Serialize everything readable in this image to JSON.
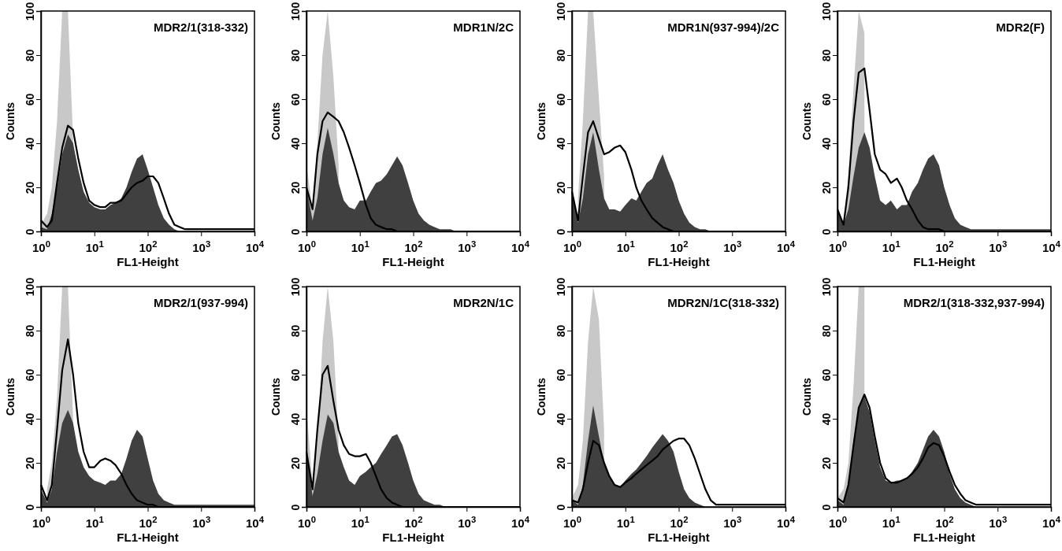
{
  "chart_data": [
    {
      "type": "area",
      "title": "MDR2/1(318-332)",
      "xlabel": "FL1-Height",
      "ylabel": "Counts",
      "log": "x",
      "xlim": [
        1,
        10000
      ],
      "ylim": [
        0,
        100
      ],
      "xticks": [
        {
          "value": 1,
          "label": "10$^{0}$"
        },
        {
          "value": 10,
          "label": "10$^{1}$"
        },
        {
          "value": 100,
          "label": "10$^{2}$"
        },
        {
          "value": 1000,
          "label": "10$^{3}$"
        },
        {
          "value": 10000,
          "label": "10$^{4}$"
        }
      ],
      "yticks": [
        0,
        20,
        40,
        60,
        80,
        100
      ],
      "x": [
        1,
        1.3,
        1.6,
        2,
        2.5,
        3.2,
        4,
        5,
        6.3,
        8,
        10,
        13,
        16,
        20,
        25,
        32,
        40,
        50,
        63,
        80,
        100,
        126,
        158,
        200,
        251,
        316,
        398,
        500,
        631,
        794,
        1000,
        2000,
        5000,
        10000
      ],
      "series": [
        {
          "color": "#c8c8c8",
          "values": [
            3,
            8,
            20,
            50,
            100,
            100,
            42,
            null,
            null,
            null,
            null,
            null,
            null,
            null,
            null,
            null,
            null,
            null,
            null,
            null,
            null,
            null,
            null,
            null,
            null,
            null,
            null,
            null,
            null,
            null,
            null,
            null,
            null,
            null
          ]
        },
        {
          "color": "#404040",
          "values": [
            2,
            1,
            8,
            20,
            35,
            44,
            40,
            28,
            18,
            13,
            11,
            10,
            10,
            12,
            13,
            15,
            20,
            27,
            33,
            35,
            28,
            20,
            12,
            6,
            3,
            1,
            0,
            0,
            0,
            0,
            0,
            0,
            0,
            0
          ]
        },
        {
          "type": "line",
          "color": "#000000",
          "values": [
            5,
            2,
            5,
            22,
            38,
            48,
            46,
            33,
            22,
            14,
            12,
            11,
            11,
            13,
            13,
            14,
            17,
            20,
            22,
            23,
            25,
            25,
            22,
            15,
            8,
            3,
            2,
            1,
            1,
            1,
            1,
            1,
            1,
            1
          ]
        }
      ]
    },
    {
      "type": "area",
      "title": "MDR1N/2C",
      "xlabel": "FL1-Height",
      "ylabel": "Counts",
      "log": "x",
      "xlim": [
        1,
        10000
      ],
      "ylim": [
        0,
        100
      ],
      "xticks": [
        {
          "value": 1,
          "label": "10$^{0}$"
        },
        {
          "value": 10,
          "label": "10$^{1}$"
        },
        {
          "value": 100,
          "label": "10$^{2}$"
        },
        {
          "value": 1000,
          "label": "10$^{3}$"
        },
        {
          "value": 10000,
          "label": "10$^{4}$"
        }
      ],
      "yticks": [
        0,
        20,
        40,
        60,
        80,
        100
      ],
      "x": [
        1,
        1.3,
        1.6,
        2,
        2.5,
        3.2,
        4,
        5,
        6.3,
        8,
        10,
        13,
        16,
        20,
        25,
        32,
        40,
        50,
        63,
        80,
        100,
        126,
        158,
        200,
        251,
        316,
        398,
        500,
        631,
        794,
        1000,
        2000,
        5000,
        10000
      ],
      "series": [
        {
          "color": "#c8c8c8",
          "values": [
            30,
            10,
            40,
            80,
            100,
            70,
            30,
            null,
            null,
            null,
            null,
            null,
            null,
            null,
            null,
            null,
            null,
            null,
            null,
            null,
            null,
            null,
            null,
            null,
            null,
            null,
            null,
            null,
            null,
            null,
            null,
            null,
            null,
            null
          ]
        },
        {
          "color": "#404040",
          "values": [
            20,
            5,
            15,
            35,
            47,
            35,
            22,
            14,
            11,
            10,
            14,
            14,
            18,
            22,
            23,
            26,
            30,
            34,
            30,
            22,
            14,
            8,
            5,
            3,
            2,
            1,
            1,
            1,
            0,
            0,
            0,
            0,
            0,
            0
          ]
        },
        {
          "type": "line",
          "color": "#000000",
          "values": [
            20,
            10,
            35,
            50,
            54,
            52,
            50,
            45,
            38,
            30,
            22,
            12,
            6,
            3,
            2,
            1,
            1,
            0,
            0,
            0,
            0,
            0,
            0,
            0,
            0,
            0,
            0,
            0,
            0,
            0,
            0,
            0,
            0,
            0
          ]
        }
      ]
    },
    {
      "type": "area",
      "title": "MDR1N(937-994)/2C",
      "xlabel": "FL1-Height",
      "ylabel": "Counts",
      "log": "x",
      "xlim": [
        1,
        10000
      ],
      "ylim": [
        0,
        100
      ],
      "xticks": [
        {
          "value": 1,
          "label": "10$^{0}$"
        },
        {
          "value": 10,
          "label": "10$^{1}$"
        },
        {
          "value": 100,
          "label": "10$^{2}$"
        },
        {
          "value": 1000,
          "label": "10$^{3}$"
        },
        {
          "value": 10000,
          "label": "10$^{4}$"
        }
      ],
      "yticks": [
        0,
        20,
        40,
        60,
        80,
        100
      ],
      "x": [
        1,
        1.3,
        1.6,
        2,
        2.5,
        3.2,
        4,
        5,
        6.3,
        8,
        10,
        13,
        16,
        20,
        25,
        32,
        40,
        50,
        63,
        80,
        100,
        126,
        158,
        200,
        251,
        316,
        398,
        500,
        631,
        794,
        1000,
        2000,
        5000,
        10000
      ],
      "series": [
        {
          "color": "#c8c8c8",
          "values": [
            null,
            15,
            50,
            100,
            100,
            60,
            25,
            null,
            null,
            null,
            null,
            null,
            null,
            null,
            null,
            null,
            null,
            null,
            null,
            null,
            null,
            null,
            null,
            null,
            null,
            null,
            null,
            null,
            null,
            null,
            null,
            null,
            null,
            null
          ]
        },
        {
          "color": "#404040",
          "values": [
            18,
            4,
            15,
            35,
            45,
            28,
            15,
            10,
            10,
            9,
            12,
            15,
            14,
            18,
            22,
            24,
            30,
            35,
            28,
            22,
            14,
            8,
            4,
            2,
            1,
            1,
            0,
            0,
            0,
            0,
            0,
            0,
            0,
            0
          ]
        },
        {
          "type": "line",
          "color": "#000000",
          "values": [
            18,
            5,
            25,
            45,
            50,
            42,
            35,
            36,
            38,
            39,
            36,
            28,
            20,
            14,
            10,
            6,
            4,
            2,
            1,
            0,
            0,
            0,
            0,
            0,
            0,
            0,
            0,
            0,
            0,
            0,
            0,
            0,
            0,
            0
          ]
        }
      ]
    },
    {
      "type": "area",
      "title": "MDR2(F)",
      "xlabel": "FL1-Height",
      "ylabel": "Counts",
      "log": "x",
      "xlim": [
        1,
        10000
      ],
      "ylim": [
        0,
        100
      ],
      "xticks": [
        {
          "value": 1,
          "label": "10$^{0}$"
        },
        {
          "value": 10,
          "label": "10$^{1}$"
        },
        {
          "value": 100,
          "label": "10$^{2}$"
        },
        {
          "value": 1000,
          "label": "10$^{3}$"
        },
        {
          "value": 10000,
          "label": "10$^{4}$"
        }
      ],
      "yticks": [
        0,
        20,
        40,
        60,
        80,
        100
      ],
      "x": [
        1,
        1.3,
        1.6,
        2,
        2.5,
        3.2,
        4,
        5,
        6.3,
        8,
        10,
        13,
        16,
        20,
        25,
        32,
        40,
        50,
        63,
        80,
        100,
        126,
        158,
        200,
        251,
        316,
        398,
        500,
        631,
        794,
        1000,
        2000,
        5000,
        10000
      ],
      "series": [
        {
          "color": "#c8c8c8",
          "values": [
            null,
            5,
            25,
            65,
            100,
            90,
            null,
            null,
            null,
            null,
            null,
            null,
            null,
            null,
            null,
            null,
            null,
            null,
            null,
            null,
            null,
            null,
            null,
            null,
            null,
            null,
            null,
            null,
            null,
            null,
            null,
            null,
            null,
            null
          ]
        },
        {
          "color": "#404040",
          "values": [
            10,
            3,
            10,
            25,
            38,
            45,
            38,
            25,
            14,
            12,
            14,
            10,
            12,
            12,
            18,
            22,
            28,
            33,
            35,
            30,
            20,
            12,
            6,
            3,
            2,
            1,
            1,
            1,
            1,
            1,
            1,
            1,
            1,
            1
          ]
        },
        {
          "type": "line",
          "color": "#000000",
          "values": [
            10,
            3,
            20,
            50,
            72,
            74,
            55,
            35,
            28,
            26,
            22,
            24,
            20,
            14,
            10,
            5,
            2,
            1,
            1,
            1,
            0,
            0,
            0,
            0,
            0,
            0,
            0,
            0,
            0,
            0,
            0,
            0,
            0,
            0
          ]
        }
      ]
    },
    {
      "type": "area",
      "title": "MDR2/1(937-994)",
      "xlabel": "FL1-Height",
      "ylabel": "Counts",
      "log": "x",
      "xlim": [
        1,
        10000
      ],
      "ylim": [
        0,
        100
      ],
      "xticks": [
        {
          "value": 1,
          "label": "10$^{0}$"
        },
        {
          "value": 10,
          "label": "10$^{1}$"
        },
        {
          "value": 100,
          "label": "10$^{2}$"
        },
        {
          "value": 1000,
          "label": "10$^{3}$"
        },
        {
          "value": 10000,
          "label": "10$^{4}$"
        }
      ],
      "yticks": [
        0,
        20,
        40,
        60,
        80,
        100
      ],
      "x": [
        1,
        1.3,
        1.6,
        2,
        2.5,
        3.2,
        4,
        5,
        6.3,
        8,
        10,
        13,
        16,
        20,
        25,
        32,
        40,
        50,
        63,
        80,
        100,
        126,
        158,
        200,
        251,
        316,
        398,
        500,
        631,
        794,
        1000,
        2000,
        5000,
        10000
      ],
      "series": [
        {
          "color": "#c8c8c8",
          "values": [
            null,
            8,
            20,
            50,
            100,
            100,
            40,
            null,
            null,
            null,
            null,
            null,
            null,
            null,
            null,
            null,
            null,
            null,
            null,
            null,
            null,
            null,
            null,
            null,
            null,
            null,
            null,
            null,
            null,
            null,
            null,
            null,
            null,
            null
          ]
        },
        {
          "color": "#404040",
          "values": [
            8,
            2,
            8,
            25,
            38,
            44,
            38,
            25,
            18,
            14,
            12,
            11,
            10,
            12,
            12,
            15,
            22,
            30,
            35,
            32,
            22,
            12,
            6,
            3,
            2,
            1,
            1,
            1,
            1,
            1,
            1,
            1,
            1,
            1
          ]
        },
        {
          "type": "line",
          "color": "#000000",
          "values": [
            10,
            3,
            10,
            35,
            62,
            76,
            60,
            38,
            25,
            18,
            18,
            21,
            22,
            21,
            19,
            15,
            10,
            6,
            3,
            2,
            1,
            1,
            0,
            0,
            0,
            0,
            0,
            0,
            0,
            0,
            0,
            0,
            0,
            0
          ]
        }
      ]
    },
    {
      "type": "area",
      "title": "MDR2N/1C",
      "xlabel": "FL1-Height",
      "ylabel": "Counts",
      "log": "x",
      "xlim": [
        1,
        10000
      ],
      "ylim": [
        0,
        100
      ],
      "xticks": [
        {
          "value": 1,
          "label": "10$^{0}$"
        },
        {
          "value": 10,
          "label": "10$^{1}$"
        },
        {
          "value": 100,
          "label": "10$^{2}$"
        },
        {
          "value": 1000,
          "label": "10$^{3}$"
        },
        {
          "value": 10000,
          "label": "10$^{4}$"
        }
      ],
      "yticks": [
        0,
        20,
        40,
        60,
        80,
        100
      ],
      "x": [
        1,
        1.3,
        1.6,
        2,
        2.5,
        3.2,
        4,
        5,
        6.3,
        8,
        10,
        13,
        16,
        20,
        25,
        32,
        40,
        50,
        63,
        80,
        100,
        126,
        158,
        200,
        251,
        316,
        398,
        500,
        631,
        794,
        1000,
        2000,
        5000,
        10000
      ],
      "series": [
        {
          "color": "#c8c8c8",
          "values": [
            45,
            10,
            30,
            75,
            100,
            75,
            30,
            null,
            null,
            null,
            null,
            null,
            null,
            null,
            null,
            null,
            null,
            null,
            null,
            null,
            null,
            null,
            null,
            null,
            null,
            null,
            null,
            null,
            null,
            null,
            null,
            null,
            null,
            null
          ]
        },
        {
          "color": "#404040",
          "values": [
            25,
            5,
            15,
            30,
            42,
            38,
            25,
            18,
            12,
            10,
            14,
            16,
            18,
            20,
            24,
            28,
            32,
            33,
            28,
            20,
            12,
            6,
            3,
            2,
            1,
            1,
            0,
            0,
            0,
            0,
            0,
            0,
            0,
            0
          ]
        },
        {
          "type": "line",
          "color": "#000000",
          "values": [
            25,
            8,
            35,
            60,
            64,
            48,
            35,
            28,
            24,
            23,
            23,
            24,
            20,
            14,
            8,
            4,
            2,
            1,
            0,
            0,
            0,
            0,
            0,
            0,
            0,
            0,
            0,
            0,
            0,
            0,
            0,
            0,
            0,
            0
          ]
        }
      ]
    },
    {
      "type": "area",
      "title": "MDR2N/1C(318-332)",
      "xlabel": "FL1-Height",
      "ylabel": "Counts",
      "log": "x",
      "xlim": [
        1,
        10000
      ],
      "ylim": [
        0,
        100
      ],
      "xticks": [
        {
          "value": 1,
          "label": "10$^{0}$"
        },
        {
          "value": 10,
          "label": "10$^{1}$"
        },
        {
          "value": 100,
          "label": "10$^{2}$"
        },
        {
          "value": 1000,
          "label": "10$^{3}$"
        },
        {
          "value": 10000,
          "label": "10$^{4}$"
        }
      ],
      "yticks": [
        0,
        20,
        40,
        60,
        80,
        100
      ],
      "x": [
        1,
        1.3,
        1.6,
        2,
        2.5,
        3.2,
        4,
        5,
        6.3,
        8,
        10,
        13,
        16,
        20,
        25,
        32,
        40,
        50,
        63,
        80,
        100,
        126,
        158,
        200,
        251,
        316,
        398,
        500,
        631,
        794,
        1000,
        2000,
        5000,
        10000
      ],
      "series": [
        {
          "color": "#c8c8c8",
          "values": [
            4,
            10,
            30,
            75,
            100,
            85,
            35,
            null,
            null,
            null,
            null,
            null,
            null,
            null,
            null,
            null,
            null,
            null,
            null,
            null,
            null,
            null,
            null,
            null,
            null,
            null,
            null,
            null,
            null,
            null,
            null,
            null,
            null,
            null
          ]
        },
        {
          "color": "#404040",
          "values": [
            3,
            1,
            10,
            30,
            46,
            32,
            20,
            14,
            10,
            9,
            12,
            15,
            17,
            20,
            23,
            27,
            30,
            33,
            30,
            25,
            16,
            8,
            4,
            2,
            1,
            0,
            0,
            0,
            0,
            0,
            0,
            0,
            0,
            0
          ]
        },
        {
          "type": "line",
          "color": "#000000",
          "values": [
            3,
            2,
            8,
            20,
            30,
            28,
            20,
            14,
            10,
            9,
            11,
            13,
            15,
            17,
            19,
            21,
            23,
            26,
            28,
            30,
            31,
            31,
            28,
            22,
            15,
            8,
            3,
            1,
            1,
            1,
            1,
            1,
            1,
            1
          ]
        }
      ]
    },
    {
      "type": "area",
      "title": "MDR2/1(318-332,937-994)",
      "xlabel": "FL1-Height",
      "ylabel": "Counts",
      "log": "x",
      "xlim": [
        1,
        10000
      ],
      "ylim": [
        0,
        100
      ],
      "xticks": [
        {
          "value": 1,
          "label": "10$^{0}$"
        },
        {
          "value": 10,
          "label": "10$^{1}$"
        },
        {
          "value": 100,
          "label": "10$^{2}$"
        },
        {
          "value": 1000,
          "label": "10$^{3}$"
        },
        {
          "value": 10000,
          "label": "10$^{4}$"
        }
      ],
      "yticks": [
        0,
        20,
        40,
        60,
        80,
        100
      ],
      "x": [
        1,
        1.3,
        1.6,
        2,
        2.5,
        3.2,
        4,
        5,
        6.3,
        8,
        10,
        13,
        16,
        20,
        25,
        32,
        40,
        50,
        63,
        80,
        100,
        126,
        158,
        200,
        251,
        316,
        398,
        500,
        631,
        794,
        1000,
        2000,
        5000,
        10000
      ],
      "series": [
        {
          "color": "#c8c8c8",
          "values": [
            4,
            8,
            20,
            55,
            100,
            100,
            null,
            null,
            null,
            null,
            null,
            null,
            null,
            null,
            null,
            null,
            null,
            null,
            null,
            null,
            null,
            null,
            null,
            null,
            null,
            null,
            null,
            null,
            null,
            null,
            null,
            null,
            null,
            null
          ]
        },
        {
          "color": "#404040",
          "values": [
            3,
            1,
            10,
            30,
            45,
            50,
            43,
            30,
            18,
            12,
            11,
            12,
            12,
            13,
            16,
            20,
            26,
            32,
            35,
            32,
            25,
            15,
            8,
            4,
            2,
            1,
            0,
            0,
            0,
            0,
            0,
            0,
            0,
            0
          ]
        },
        {
          "type": "line",
          "color": "#000000",
          "values": [
            4,
            2,
            10,
            28,
            45,
            51,
            45,
            32,
            20,
            13,
            11,
            11,
            12,
            13,
            15,
            18,
            22,
            27,
            29,
            28,
            23,
            16,
            10,
            6,
            3,
            2,
            1,
            1,
            1,
            1,
            1,
            1,
            1,
            1
          ]
        }
      ]
    }
  ]
}
